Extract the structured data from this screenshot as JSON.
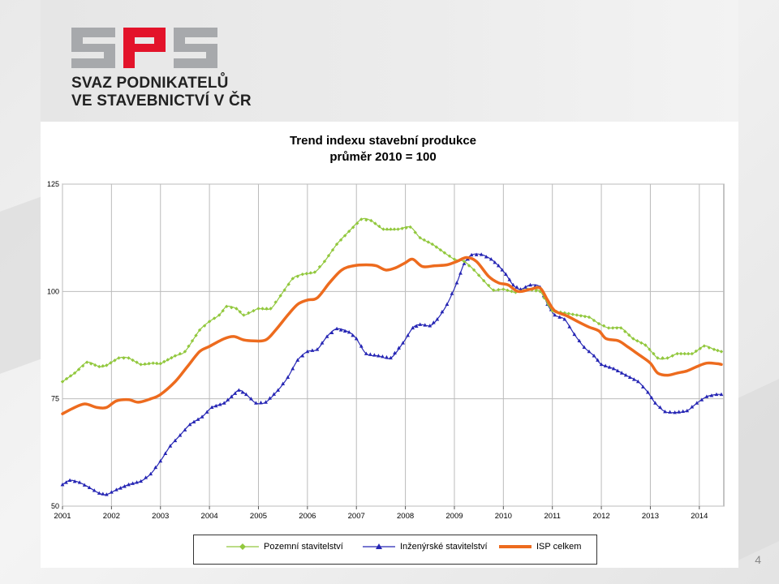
{
  "logo": {
    "letters": "SPS",
    "line1": "SVAZ PODNIKATELŮ",
    "line2": "VE STAVEBNICTVÍ V ČR",
    "color_gray": "#a7a9ac",
    "color_red": "#e3132a"
  },
  "page_number": "4",
  "chart_data": {
    "type": "line",
    "title": "Trend indexu stavební produkce",
    "subtitle": "průměr 2010 = 100",
    "xlabel": "",
    "ylabel": "",
    "xlim": [
      2001,
      2014.5
    ],
    "ylim": [
      50,
      125
    ],
    "y_ticks": [
      50,
      75,
      100,
      125
    ],
    "x_ticks": [
      "2001",
      "2002",
      "2003",
      "2004",
      "2005",
      "2006",
      "2007",
      "2008",
      "2009",
      "2010",
      "2011",
      "2012",
      "2013",
      "2014"
    ],
    "grid": true,
    "legend_position": "bottom",
    "series": [
      {
        "name": "Pozemní stavitelství",
        "color": "#92c83e",
        "marker": "diamond",
        "points": [
          [
            2001.0,
            79
          ],
          [
            2001.25,
            81
          ],
          [
            2001.5,
            83.5
          ],
          [
            2001.75,
            82.5
          ],
          [
            2001.9,
            82.8
          ],
          [
            2002.15,
            84.5
          ],
          [
            2002.35,
            84.5
          ],
          [
            2002.6,
            83
          ],
          [
            2002.85,
            83.3
          ],
          [
            2003.0,
            83.2
          ],
          [
            2003.3,
            85
          ],
          [
            2003.5,
            86
          ],
          [
            2003.8,
            91
          ],
          [
            2004.0,
            93
          ],
          [
            2004.2,
            94.5
          ],
          [
            2004.35,
            96.5
          ],
          [
            2004.55,
            96
          ],
          [
            2004.7,
            94.5
          ],
          [
            2004.9,
            95.5
          ],
          [
            2005.0,
            96
          ],
          [
            2005.25,
            96
          ],
          [
            2005.45,
            99
          ],
          [
            2005.7,
            103
          ],
          [
            2005.9,
            104
          ],
          [
            2006.15,
            104.5
          ],
          [
            2006.35,
            107
          ],
          [
            2006.6,
            111
          ],
          [
            2006.85,
            114
          ],
          [
            2007.1,
            116.8
          ],
          [
            2007.3,
            116.5
          ],
          [
            2007.55,
            114.5
          ],
          [
            2007.85,
            114.5
          ],
          [
            2008.1,
            115
          ],
          [
            2008.3,
            112.5
          ],
          [
            2008.55,
            111
          ],
          [
            2008.8,
            109
          ],
          [
            2009.0,
            107.5
          ],
          [
            2009.2,
            107
          ],
          [
            2009.4,
            105
          ],
          [
            2009.6,
            102.5
          ],
          [
            2009.8,
            100.3
          ],
          [
            2010.0,
            100.5
          ],
          [
            2010.25,
            99.8
          ],
          [
            2010.5,
            100.5
          ],
          [
            2010.75,
            100
          ],
          [
            2011.0,
            95.5
          ],
          [
            2011.25,
            95
          ],
          [
            2011.5,
            94.5
          ],
          [
            2011.75,
            94
          ],
          [
            2011.95,
            92.5
          ],
          [
            2012.15,
            91.5
          ],
          [
            2012.4,
            91.5
          ],
          [
            2012.65,
            89
          ],
          [
            2012.9,
            87.5
          ],
          [
            2013.15,
            84.5
          ],
          [
            2013.35,
            84.5
          ],
          [
            2013.55,
            85.5
          ],
          [
            2013.85,
            85.5
          ],
          [
            2014.1,
            87.3
          ],
          [
            2014.3,
            86.5
          ],
          [
            2014.45,
            86
          ]
        ]
      },
      {
        "name": "Inženýrské stavitelství",
        "color": "#2626b4",
        "marker": "triangle",
        "points": [
          [
            2001.0,
            55
          ],
          [
            2001.15,
            56
          ],
          [
            2001.35,
            55.5
          ],
          [
            2001.55,
            54.3
          ],
          [
            2001.75,
            53
          ],
          [
            2001.9,
            52.7
          ],
          [
            2002.1,
            53.8
          ],
          [
            2002.35,
            55
          ],
          [
            2002.6,
            55.8
          ],
          [
            2002.8,
            57.5
          ],
          [
            2003.0,
            60.5
          ],
          [
            2003.2,
            64
          ],
          [
            2003.4,
            66.5
          ],
          [
            2003.6,
            69
          ],
          [
            2003.85,
            70.8
          ],
          [
            2004.05,
            73
          ],
          [
            2004.3,
            74
          ],
          [
            2004.45,
            75.5
          ],
          [
            2004.6,
            77
          ],
          [
            2004.75,
            76
          ],
          [
            2004.95,
            74
          ],
          [
            2005.15,
            74.2
          ],
          [
            2005.4,
            77
          ],
          [
            2005.6,
            80
          ],
          [
            2005.8,
            84
          ],
          [
            2006.0,
            86
          ],
          [
            2006.2,
            86.5
          ],
          [
            2006.4,
            89.5
          ],
          [
            2006.6,
            91.3
          ],
          [
            2006.85,
            90.5
          ],
          [
            2007.0,
            89
          ],
          [
            2007.2,
            85.5
          ],
          [
            2007.45,
            85
          ],
          [
            2007.7,
            84.5
          ],
          [
            2007.95,
            88
          ],
          [
            2008.15,
            91.5
          ],
          [
            2008.3,
            92.3
          ],
          [
            2008.5,
            92
          ],
          [
            2008.65,
            93.5
          ],
          [
            2008.85,
            97
          ],
          [
            2009.05,
            102
          ],
          [
            2009.2,
            106.5
          ],
          [
            2009.35,
            108.5
          ],
          [
            2009.55,
            108.6
          ],
          [
            2009.75,
            107.5
          ],
          [
            2009.9,
            106
          ],
          [
            2010.05,
            104
          ],
          [
            2010.2,
            101.5
          ],
          [
            2010.35,
            100.5
          ],
          [
            2010.55,
            101.5
          ],
          [
            2010.75,
            101
          ],
          [
            2010.9,
            97
          ],
          [
            2011.05,
            94.5
          ],
          [
            2011.25,
            93.5
          ],
          [
            2011.45,
            90
          ],
          [
            2011.65,
            87
          ],
          [
            2011.85,
            85
          ],
          [
            2012.0,
            83
          ],
          [
            2012.25,
            82
          ],
          [
            2012.5,
            80.5
          ],
          [
            2012.75,
            79
          ],
          [
            2012.95,
            76.5
          ],
          [
            2013.1,
            74
          ],
          [
            2013.3,
            72
          ],
          [
            2013.5,
            71.8
          ],
          [
            2013.75,
            72.2
          ],
          [
            2013.95,
            74
          ],
          [
            2014.15,
            75.5
          ],
          [
            2014.35,
            76
          ],
          [
            2014.45,
            76
          ]
        ]
      },
      {
        "name": "ISP celkem",
        "color": "#ed6b1e",
        "marker": "none",
        "points": [
          [
            2001.0,
            71.5
          ],
          [
            2001.2,
            72.7
          ],
          [
            2001.45,
            73.8
          ],
          [
            2001.7,
            73
          ],
          [
            2001.9,
            73
          ],
          [
            2002.1,
            74.5
          ],
          [
            2002.35,
            74.8
          ],
          [
            2002.55,
            74.2
          ],
          [
            2002.8,
            75
          ],
          [
            2003.0,
            76
          ],
          [
            2003.3,
            79
          ],
          [
            2003.55,
            82.5
          ],
          [
            2003.8,
            86
          ],
          [
            2004.0,
            87.2
          ],
          [
            2004.3,
            89
          ],
          [
            2004.5,
            89.5
          ],
          [
            2004.7,
            88.7
          ],
          [
            2004.9,
            88.5
          ],
          [
            2005.15,
            88.7
          ],
          [
            2005.35,
            91
          ],
          [
            2005.6,
            94.5
          ],
          [
            2005.8,
            97
          ],
          [
            2006.0,
            98
          ],
          [
            2006.2,
            98.5
          ],
          [
            2006.45,
            102
          ],
          [
            2006.7,
            105
          ],
          [
            2006.95,
            106
          ],
          [
            2007.2,
            106.2
          ],
          [
            2007.4,
            106
          ],
          [
            2007.6,
            105
          ],
          [
            2007.8,
            105.5
          ],
          [
            2008.0,
            106.7
          ],
          [
            2008.15,
            107.5
          ],
          [
            2008.35,
            105.8
          ],
          [
            2008.6,
            106
          ],
          [
            2008.85,
            106.2
          ],
          [
            2009.05,
            107
          ],
          [
            2009.25,
            107.9
          ],
          [
            2009.45,
            107
          ],
          [
            2009.7,
            103.5
          ],
          [
            2009.9,
            102
          ],
          [
            2010.1,
            101.5
          ],
          [
            2010.3,
            100
          ],
          [
            2010.55,
            100.5
          ],
          [
            2010.75,
            100.8
          ],
          [
            2010.9,
            98
          ],
          [
            2011.05,
            95.5
          ],
          [
            2011.3,
            94.3
          ],
          [
            2011.55,
            92.8
          ],
          [
            2011.75,
            91.7
          ],
          [
            2011.95,
            90.8
          ],
          [
            2012.1,
            89
          ],
          [
            2012.35,
            88.5
          ],
          [
            2012.55,
            87
          ],
          [
            2012.8,
            85
          ],
          [
            2013.0,
            83.3
          ],
          [
            2013.15,
            81
          ],
          [
            2013.35,
            80.5
          ],
          [
            2013.55,
            81
          ],
          [
            2013.75,
            81.5
          ],
          [
            2013.95,
            82.5
          ],
          [
            2014.15,
            83.3
          ],
          [
            2014.35,
            83.2
          ],
          [
            2014.45,
            83
          ]
        ]
      }
    ]
  }
}
